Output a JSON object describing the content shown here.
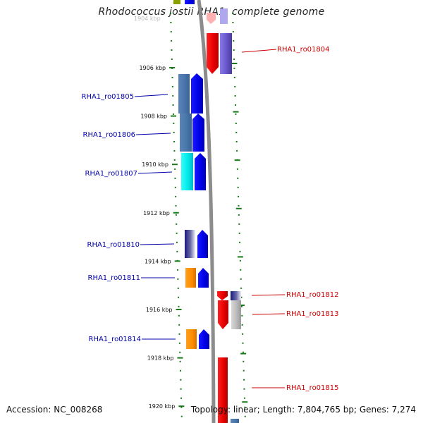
{
  "title": "Rhodococcus jostii RHA1, complete genome",
  "footer": {
    "accession": "Accession: NC_008268",
    "topology": "Topology: linear; Length: 7,804,765 bp; Genes: 7,274"
  },
  "ticks": [
    "1906 kbp",
    "1908 kbp",
    "1910 kbp",
    "1912 kbp",
    "1914 kbp",
    "1916 kbp",
    "1918 kbp",
    "1920 kbp"
  ],
  "faded_tick": "1904 kbp",
  "left_labels": [
    "RHA1_ro01805",
    "RHA1_ro01806",
    "RHA1_ro01807",
    "RHA1_ro01810",
    "RHA1_ro01811",
    "RHA1_ro01814"
  ],
  "right_labels": [
    "RHA1_ro01804",
    "RHA1_ro01812",
    "RHA1_ro01813",
    "RHA1_ro01815"
  ],
  "colors": {
    "forward": "#0000ee",
    "reverse": "#ee0000",
    "forward_label": "#0000aa",
    "reverse_label": "#cc0000",
    "tick": "#1a7a1a",
    "backbone": "#888888"
  }
}
